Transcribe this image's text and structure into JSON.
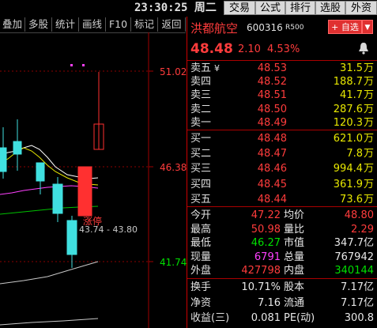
{
  "clock": {
    "time": "23:30:25",
    "weekday": "周二"
  },
  "top_menu": [
    "交易",
    "公式",
    "排行",
    "选股",
    "外资"
  ],
  "toolbar": [
    "叠加",
    "多股",
    "统计",
    "画线",
    "F10",
    "标记",
    "返回"
  ],
  "chart": {
    "price_labels": [
      "51.02",
      "46.38",
      "41.74"
    ],
    "range_text": "43.74 - 43.80",
    "marker_text": "涨停",
    "colors": {
      "up": "#ff3030",
      "down": "#40e0e0",
      "ma1": "#ffffff",
      "ma2": "#e8e800",
      "ma3": "#ff40ff",
      "ma4": "#00c000"
    }
  },
  "stock": {
    "name": "洪都航空",
    "code": "600316",
    "badge": "R",
    "badge_sub": "500",
    "add_button": "+ 自选",
    "dropdown": "▼",
    "price": "48.48",
    "change": "2.10",
    "pct": "4.53%"
  },
  "sells": [
    {
      "label": "卖五",
      "mark": "¥",
      "price": "48.53",
      "vol": "31.5",
      "unit": "万"
    },
    {
      "label": "卖四",
      "mark": "",
      "price": "48.52",
      "vol": "188.7",
      "unit": "万"
    },
    {
      "label": "卖三",
      "mark": "",
      "price": "48.51",
      "vol": "41.7",
      "unit": "万"
    },
    {
      "label": "卖二",
      "mark": "",
      "price": "48.50",
      "vol": "287.6",
      "unit": "万"
    },
    {
      "label": "卖一",
      "mark": "",
      "price": "48.49",
      "vol": "120.3",
      "unit": "万"
    }
  ],
  "buys": [
    {
      "label": "买一",
      "price": "48.48",
      "vol": "621.0",
      "unit": "万"
    },
    {
      "label": "买二",
      "price": "48.47",
      "vol": "7.8",
      "unit": "万"
    },
    {
      "label": "买三",
      "price": "48.46",
      "vol": "994.4",
      "unit": "万"
    },
    {
      "label": "买四",
      "price": "48.45",
      "vol": "361.9",
      "unit": "万"
    },
    {
      "label": "买五",
      "price": "48.44",
      "vol": "73.6",
      "unit": "万"
    }
  ],
  "stats": [
    {
      "l1": "今开",
      "v1": "47.22",
      "l2": "均价",
      "v2": "48.80"
    },
    {
      "l1": "最高",
      "v1": "50.98",
      "l2": "量比",
      "v2": "2.29"
    },
    {
      "l1": "最低",
      "v1": "46.27",
      "l2": "市值",
      "v2": "347.7亿"
    },
    {
      "l1": "现量",
      "v1": "6791",
      "l2": "总量",
      "v2": "767942"
    },
    {
      "l1": "外盘",
      "v1": "427798",
      "l2": "内盘",
      "v2": "340144"
    }
  ],
  "stats2": [
    {
      "l1": "换手",
      "v1": "10.71%",
      "l2": "股本",
      "v2": "7.17亿"
    },
    {
      "l1": "净资",
      "v1": "7.16",
      "l2": "流通",
      "v2": "7.17亿"
    },
    {
      "l1": "收益(三)",
      "v1": "0.081",
      "l2": "PE(动)",
      "v2": "300.8"
    }
  ]
}
